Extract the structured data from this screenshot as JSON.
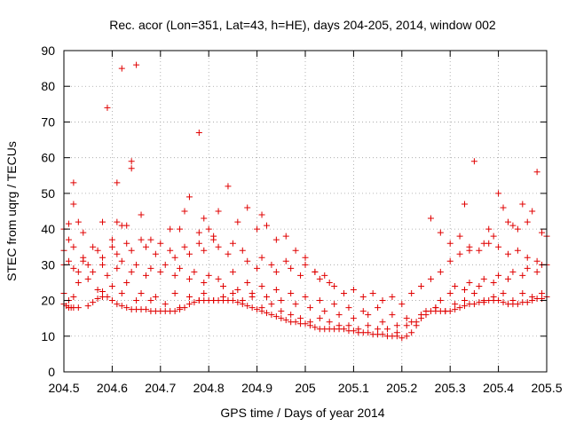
{
  "chart_data": {
    "type": "scatter",
    "title": "Rec. acor (Lon=351, Lat=43, h=HE), days 204-205, 2014, window 002",
    "xlabel": "GPS time / Days of year 2014",
    "ylabel": "STEC from uqrg / TECUs",
    "xlim": [
      204.5,
      205.5
    ],
    "ylim": [
      0,
      90
    ],
    "xticks": [
      204.5,
      204.6,
      204.7,
      204.8,
      204.9,
      205,
      205.1,
      205.2,
      205.3,
      205.4,
      205.5
    ],
    "xtick_labels": [
      "204.5",
      "204.6",
      "204.7",
      "204.8",
      "204.9",
      "205",
      "205.1",
      "205.2",
      "205.3",
      "205.4",
      "205.5"
    ],
    "yticks": [
      0,
      10,
      20,
      30,
      40,
      50,
      60,
      70,
      80,
      90
    ],
    "ytick_labels": [
      "0",
      "10",
      "20",
      "30",
      "40",
      "50",
      "60",
      "70",
      "80",
      "90"
    ],
    "grid": "dotted",
    "marker": "plus",
    "color": "#e00000",
    "series": [
      {
        "x": [
          204.5,
          204.505,
          204.51,
          204.515,
          204.52,
          204.53,
          204.55,
          204.56,
          204.57,
          204.58,
          204.59,
          204.6,
          204.61,
          204.62,
          204.63,
          204.64,
          204.65,
          204.66,
          204.67,
          204.68,
          204.69,
          204.7,
          204.71,
          204.72,
          204.73,
          204.74,
          204.75,
          204.76,
          204.77,
          204.78,
          204.79,
          204.8,
          204.81,
          204.82,
          204.83,
          204.84,
          204.85,
          204.86,
          204.87,
          204.88,
          204.89,
          204.9,
          204.91,
          204.92,
          204.93,
          204.94,
          204.95,
          204.96,
          204.97,
          204.98,
          204.99,
          205,
          205.01,
          205.02,
          205.03,
          205.04,
          205.05,
          205.06,
          205.07,
          205.08,
          205.09,
          205.1,
          205.11,
          205.12,
          205.13,
          205.14,
          205.15,
          205.16,
          205.17,
          205.18,
          205.19,
          205.2,
          205.21,
          205.22,
          205.23,
          205.24,
          205.25,
          205.26,
          205.27,
          205.28,
          205.29,
          205.3,
          205.31,
          205.32,
          205.33,
          205.34,
          205.35,
          205.36,
          205.37,
          205.38,
          205.39,
          205.4,
          205.41,
          205.42,
          205.43,
          205.44,
          205.45,
          205.46,
          205.47,
          205.48,
          205.49,
          205.5
        ],
        "y": [
          19,
          18.5,
          18,
          18,
          18,
          18,
          18.5,
          19.5,
          20.5,
          21,
          21,
          20,
          19,
          18.5,
          18,
          17.5,
          17.5,
          17.5,
          17.5,
          17,
          17,
          17,
          17,
          17,
          17,
          17.5,
          18,
          19,
          19.5,
          20,
          20,
          20,
          20,
          20,
          20,
          20,
          20,
          19.5,
          19,
          18.5,
          18,
          17.5,
          17,
          16.5,
          16,
          15.5,
          15,
          14.5,
          14,
          14,
          13.5,
          13.5,
          13,
          12.5,
          12,
          12,
          12,
          12,
          12,
          12,
          11.5,
          11.5,
          11,
          11,
          11,
          10.5,
          10.5,
          10.5,
          10,
          10,
          10,
          9.5,
          10,
          11,
          13,
          15,
          17,
          17,
          17,
          17,
          17,
          17,
          17.5,
          18,
          18.5,
          19,
          19,
          19.5,
          19.5,
          20,
          20,
          20,
          19.5,
          19,
          19,
          19,
          19.5,
          19.5,
          20,
          20.5,
          20.5,
          21
        ]
      },
      {
        "x": [
          204.5,
          204.51,
          204.52,
          204.53,
          204.55,
          204.57,
          204.58,
          204.6,
          204.62,
          204.63,
          204.65,
          204.66,
          204.68,
          204.69,
          204.71,
          204.73,
          204.74,
          204.76,
          204.78,
          204.79,
          204.81,
          204.83,
          204.85,
          204.87,
          204.89,
          204.91,
          204.93,
          204.95,
          204.97,
          204.99,
          205.01,
          205.03,
          205.05,
          205.07,
          205.09,
          205.11,
          205.13,
          205.15,
          205.17,
          205.19,
          205.21,
          205.23,
          205.25,
          205.27,
          205.29,
          205.31,
          205.33,
          205.35,
          205.37,
          205.39,
          205.41,
          205.43,
          205.45,
          205.47,
          205.49
        ],
        "y": [
          22,
          20,
          21,
          25,
          26,
          23,
          22.5,
          24,
          22,
          25,
          20,
          22,
          20,
          21,
          19,
          22,
          18,
          21,
          20,
          22,
          20,
          21,
          22,
          20,
          21,
          18,
          19,
          17,
          16,
          15,
          14,
          15,
          14,
          13,
          13,
          12,
          13,
          12,
          12,
          11,
          13,
          14,
          16,
          18,
          17,
          19,
          20,
          22,
          20,
          21,
          22,
          20,
          22,
          21,
          22
        ]
      },
      {
        "x": [
          204.5,
          204.51,
          204.52,
          204.53,
          204.54,
          204.56,
          204.58,
          204.59,
          204.61,
          204.62,
          204.64,
          204.65,
          204.67,
          204.68,
          204.7,
          204.71,
          204.73,
          204.74,
          204.76,
          204.77,
          204.79,
          204.8,
          204.82,
          204.83,
          204.85,
          204.86,
          204.88,
          204.89,
          204.91,
          204.92,
          204.94,
          204.95,
          204.97,
          204.98,
          205,
          205.01,
          205.03,
          205.04,
          205.06,
          205.07,
          205.09,
          205.1,
          205.12,
          205.13,
          205.15,
          205.16,
          205.18,
          205.19,
          205.21,
          205.22,
          205.24,
          205.25,
          205.27,
          205.28,
          205.3,
          205.31,
          205.33,
          205.34,
          205.36,
          205.37,
          205.39,
          205.4,
          205.42,
          205.43,
          205.45,
          205.46,
          205.48,
          205.49
        ],
        "y": [
          30,
          31,
          29,
          28,
          31,
          28,
          30,
          27,
          29,
          31,
          28,
          30,
          27,
          29,
          28,
          30,
          27,
          29,
          26,
          28,
          25,
          27,
          26,
          24,
          28,
          23,
          25,
          22,
          24,
          21,
          23,
          20,
          22,
          19,
          21,
          18,
          20,
          17,
          19,
          16,
          18,
          15,
          17,
          16,
          18,
          14,
          16,
          13,
          15,
          14,
          16,
          17,
          18,
          20,
          22,
          24,
          23,
          25,
          24,
          26,
          25,
          27,
          26,
          28,
          27,
          29,
          28,
          30
        ]
      },
      {
        "x": [
          204.5,
          204.51,
          204.52,
          204.54,
          204.55,
          204.57,
          204.58,
          204.6,
          204.61,
          204.63,
          204.64,
          204.66,
          204.67,
          204.69,
          204.7,
          204.72,
          204.73,
          204.75,
          204.76,
          204.78,
          204.79,
          204.81,
          204.82,
          204.84,
          204.85,
          204.87,
          204.88,
          204.9,
          204.91,
          204.93,
          204.94,
          204.96,
          204.97,
          204.99,
          205,
          205.02,
          205.03,
          205.05,
          205.06,
          205.08,
          205.1,
          205.12,
          205.14,
          205.16,
          205.18,
          205.2,
          205.22,
          205.24,
          205.26,
          205.28,
          205.3,
          205.32,
          205.34,
          205.36,
          205.38,
          205.4,
          205.42,
          205.44,
          205.46,
          205.48,
          205.5
        ],
        "y": [
          34,
          37,
          35,
          32,
          30,
          34,
          32,
          35,
          33,
          36,
          34,
          37,
          35,
          33,
          36,
          34,
          32,
          35,
          33,
          36,
          34,
          37,
          35,
          33,
          36,
          34,
          31,
          29,
          32,
          30,
          28,
          31,
          29,
          27,
          30,
          28,
          26,
          25,
          24,
          22,
          23,
          21,
          22,
          20,
          21,
          19,
          22,
          24,
          26,
          28,
          31,
          33,
          35,
          34,
          36,
          35,
          33,
          34,
          32,
          31,
          30
        ]
      },
      {
        "x": [
          204.5,
          204.51,
          204.52,
          204.53,
          204.54,
          204.56,
          204.58,
          204.6,
          204.61,
          204.62,
          204.63,
          204.64,
          204.66,
          204.68,
          204.72,
          204.74,
          204.75,
          204.76,
          204.78,
          204.79,
          204.8,
          204.81,
          204.82,
          204.84,
          204.86,
          204.88,
          204.9,
          204.92,
          204.94,
          204.96,
          204.98,
          205,
          205.02,
          205.04,
          205.26,
          205.28,
          205.3,
          205.32,
          205.34,
          205.35,
          205.37,
          205.38,
          205.39,
          205.4,
          205.41,
          205.42,
          205.43,
          205.44,
          205.45,
          205.46,
          205.47,
          205.48,
          205.49,
          205.5
        ],
        "y": [
          40,
          41.5,
          47,
          42,
          39,
          35,
          42,
          37,
          42,
          41,
          41,
          59,
          44,
          37,
          40,
          40,
          45,
          49,
          39,
          43,
          40,
          38,
          45,
          52,
          42,
          46,
          40,
          41,
          37,
          38,
          34,
          32,
          28,
          27,
          43,
          39,
          36,
          38,
          34,
          59,
          36,
          40,
          38,
          50,
          46,
          42,
          41,
          40,
          47,
          42,
          45,
          56,
          39,
          38
        ]
      },
      {
        "x": [
          204.52,
          204.59,
          204.61,
          204.62,
          204.64,
          204.65,
          204.78,
          204.91,
          205.33
        ],
        "y": [
          53,
          74,
          53,
          85,
          57,
          86,
          67,
          44,
          47
        ]
      }
    ]
  }
}
